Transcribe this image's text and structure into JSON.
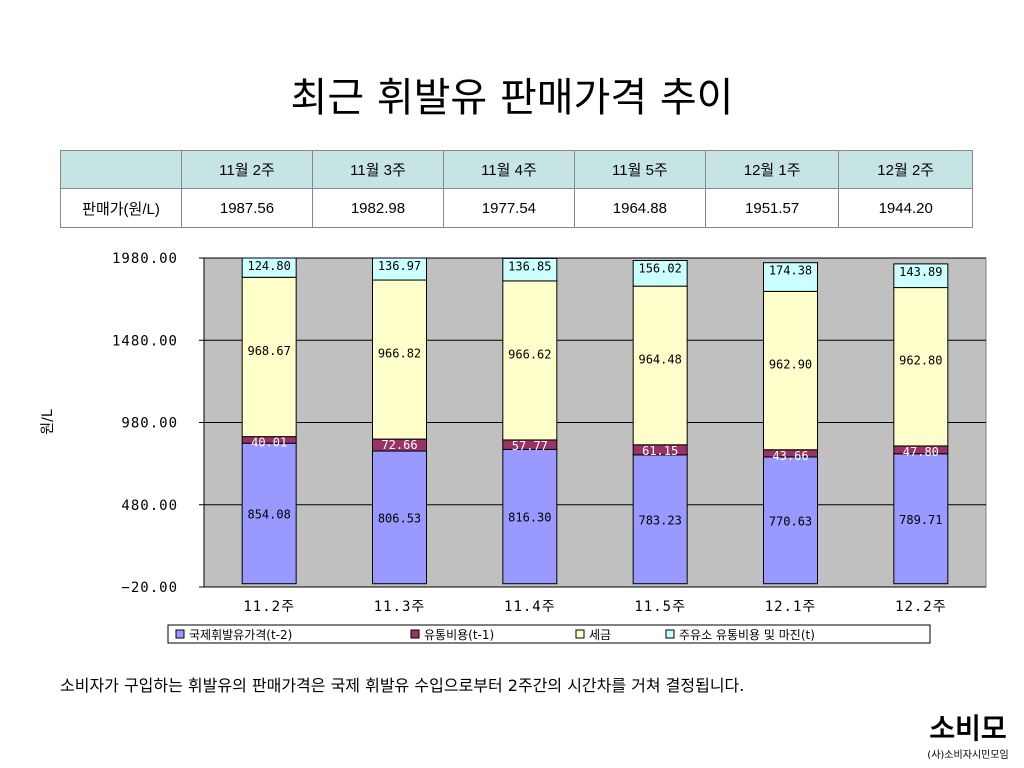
{
  "title": "최근 휘발유 판매가격 추이",
  "table": {
    "row_header": "판매가(원/L)",
    "weeks": [
      "11월 2주",
      "11월 3주",
      "11월 4주",
      "11월 5주",
      "12월 1주",
      "12월 2주"
    ],
    "prices": [
      "1987.56",
      "1982.98",
      "1977.54",
      "1964.88",
      "1951.57",
      "1944.20"
    ]
  },
  "chart_data": {
    "type": "bar",
    "stacked": true,
    "categories": [
      "11.2주",
      "11.3주",
      "11.4주",
      "11.5주",
      "12.1주",
      "12.2주"
    ],
    "ylabel": "원/L",
    "ylim": [
      -20,
      1980
    ],
    "yticks": [
      "1980.00",
      "1480.00",
      "980.00",
      "480.00",
      "-20.00"
    ],
    "grid": true,
    "legend_position": "bottom",
    "series": [
      {
        "name": "국제휘발유가격(t-2)",
        "color": "#9999ff",
        "values": [
          854.08,
          806.53,
          816.3,
          783.23,
          770.63,
          789.71
        ],
        "labels": [
          "854.08",
          "806.53",
          "816.30",
          "783.23",
          "770.63",
          "789.71"
        ]
      },
      {
        "name": "유통비용(t-1)",
        "color": "#993366",
        "values": [
          40.01,
          72.66,
          57.77,
          61.15,
          43.66,
          47.8
        ],
        "labels": [
          "40.01",
          "72.66",
          "57.77",
          "61.15",
          "43.66",
          "47.80"
        ]
      },
      {
        "name": "세금",
        "color": "#ffffcc",
        "values": [
          968.67,
          966.82,
          966.62,
          964.48,
          962.9,
          962.8
        ],
        "labels": [
          "968.67",
          "966.82",
          "966.62",
          "964.48",
          "962.90",
          "962.80"
        ]
      },
      {
        "name": "주유소 유통비용 및 마진(t)",
        "color": "#ccffff",
        "values": [
          124.8,
          136.97,
          136.85,
          156.02,
          174.38,
          143.89
        ],
        "labels": [
          "124.80",
          "136.97",
          "136.85",
          "156.02",
          "174.38",
          "143.89"
        ]
      }
    ]
  },
  "footnote": "소비자가 구입하는 휘발유의 판매가격은 국제 휘발유 수입으로부터 2주간의 시간차를 거쳐 결정됩니다.",
  "logo": {
    "mark": "소비모",
    "org": "(사)소비자시민모임"
  }
}
